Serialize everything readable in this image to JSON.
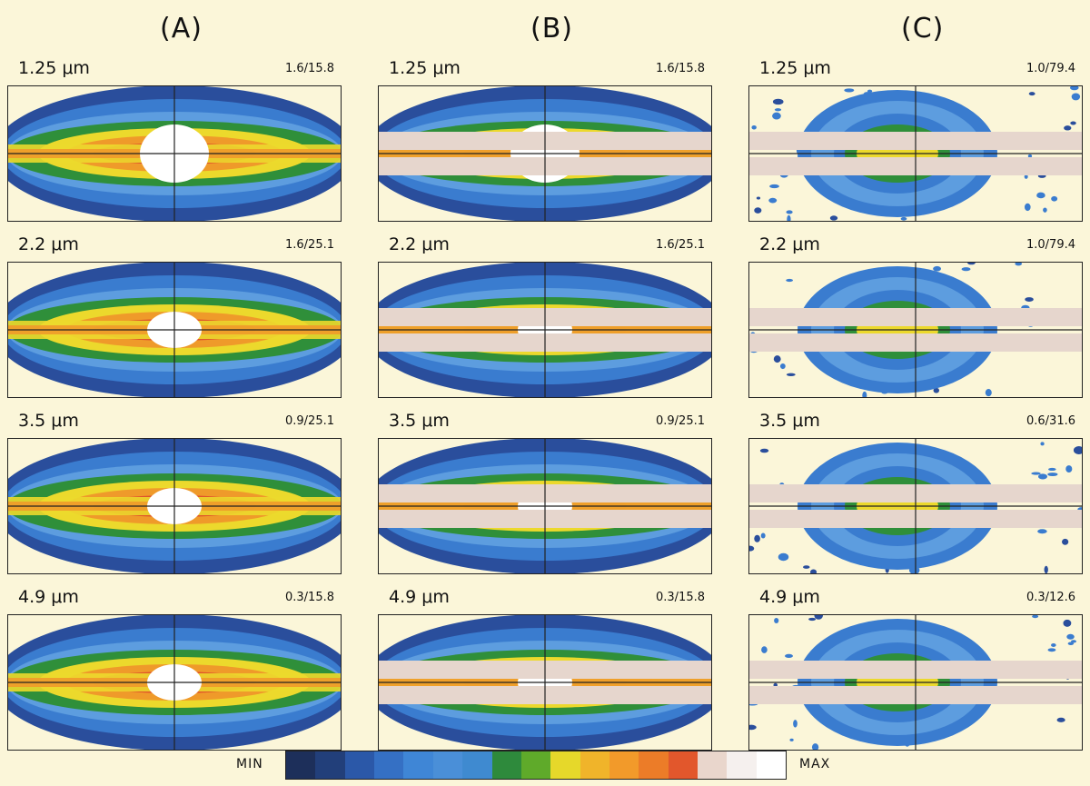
{
  "columns": [
    {
      "id": "A",
      "title": "(A)",
      "masked": false,
      "compact": false,
      "panels": [
        {
          "wavelength": "1.25 μm",
          "range": "1.6/15.8"
        },
        {
          "wavelength": "2.2 μm",
          "range": "1.6/25.1"
        },
        {
          "wavelength": "3.5 μm",
          "range": "0.9/25.1"
        },
        {
          "wavelength": "4.9 μm",
          "range": "0.3/15.8"
        }
      ]
    },
    {
      "id": "B",
      "title": "(B)",
      "masked": true,
      "compact": false,
      "panels": [
        {
          "wavelength": "1.25 μm",
          "range": "1.6/15.8"
        },
        {
          "wavelength": "2.2 μm",
          "range": "1.6/25.1"
        },
        {
          "wavelength": "3.5 μm",
          "range": "0.9/25.1"
        },
        {
          "wavelength": "4.9 μm",
          "range": "0.3/15.8"
        }
      ]
    },
    {
      "id": "C",
      "title": "(C)",
      "masked": true,
      "compact": true,
      "panels": [
        {
          "wavelength": "1.25 μm",
          "range": "1.0/79.4"
        },
        {
          "wavelength": "2.2 μm",
          "range": "1.0/79.4"
        },
        {
          "wavelength": "3.5 μm",
          "range": "0.6/31.6"
        },
        {
          "wavelength": "4.9 μm",
          "range": "0.3/12.6"
        }
      ]
    }
  ],
  "colorbar": {
    "min_label": "MIN",
    "max_label": "MAX",
    "colors": [
      "#1d2f5a",
      "#223f7a",
      "#2b58a8",
      "#3570c4",
      "#3f86d6",
      "#4a8fd8",
      "#3f8ad0",
      "#2e8a3c",
      "#5faa2a",
      "#e6d82a",
      "#f0b42a",
      "#f29a2a",
      "#ec7c28",
      "#e2572c",
      "#e9d6cc",
      "#f5f0ee",
      "#ffffff"
    ]
  },
  "map_colors": {
    "bg": "#fbf6d9",
    "dark_blue": "#2a4e9c",
    "blue": "#3a7ccf",
    "light_blue": "#5d9ddf",
    "green": "#2f8f3a",
    "yellow": "#ecd92c",
    "orange": "#ef9a2a",
    "red": "#e0542a",
    "white": "#ffffff",
    "mask": "#e6d6cd"
  }
}
